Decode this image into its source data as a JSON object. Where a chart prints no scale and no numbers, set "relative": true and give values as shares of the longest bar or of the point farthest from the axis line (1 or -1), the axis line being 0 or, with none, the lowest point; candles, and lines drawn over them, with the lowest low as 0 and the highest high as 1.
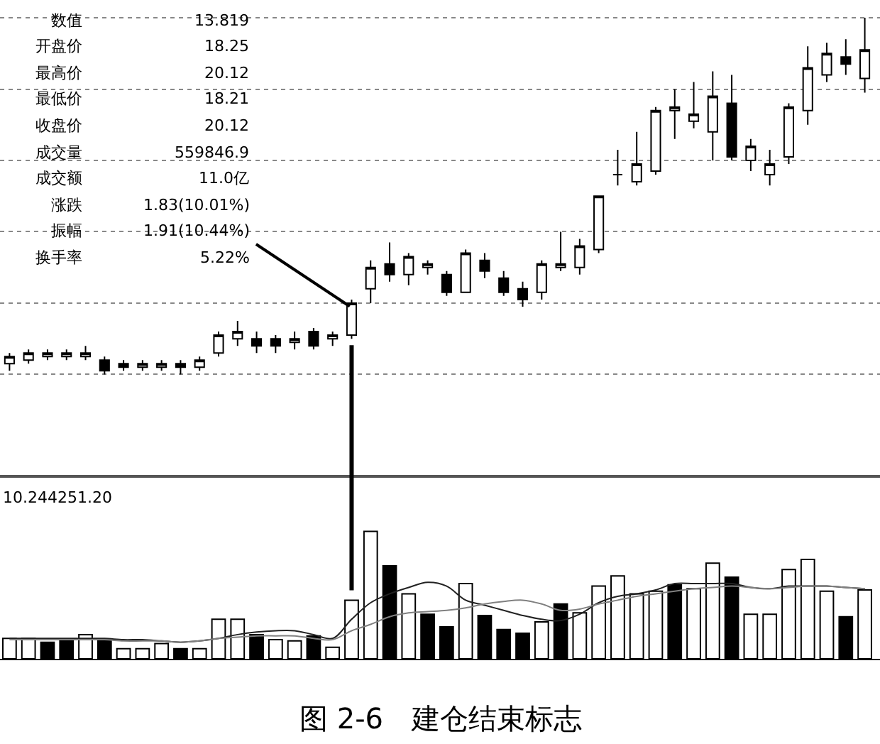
{
  "chart_data": [
    {
      "type": "candlestick",
      "title": "图 2-6　建仓结束标志",
      "relative": true,
      "grid": "y",
      "color": "#000000",
      "categories": [
        null,
        null,
        null,
        null,
        null,
        null,
        null,
        null,
        null,
        null,
        null,
        null,
        null,
        null,
        null,
        null,
        null,
        null,
        null,
        null,
        null,
        null,
        null,
        null,
        null,
        null,
        null,
        null,
        null,
        null,
        null,
        null,
        null,
        null,
        null,
        null,
        null,
        null,
        null,
        null,
        null,
        null,
        null,
        null,
        null,
        null
      ],
      "annotations": [
        "数值",
        "13.819",
        "开盘价",
        "18.25",
        "最高价",
        "20.12",
        "最低价",
        "18.21",
        "收盘价",
        "20.12",
        "成交量",
        "559846.9",
        "成交额",
        "11.0亿",
        "涨跌",
        "1.83(10.01%)",
        "振幅",
        "1.91(10.44%)",
        "换手率",
        "5.22%"
      ],
      "ohlc": [
        [
          0.03,
          0.06,
          0.01,
          0.05
        ],
        [
          0.04,
          0.07,
          0.03,
          0.06
        ],
        [
          0.05,
          0.07,
          0.04,
          0.06
        ],
        [
          0.05,
          0.07,
          0.04,
          0.06
        ],
        [
          0.05,
          0.08,
          0.04,
          0.06
        ],
        [
          0.04,
          0.05,
          0,
          0.01
        ],
        [
          0.03,
          0.04,
          0.01,
          0.02
        ],
        [
          0.02,
          0.04,
          0.01,
          0.03
        ],
        [
          0.02,
          0.04,
          0.01,
          0.03
        ],
        [
          0.03,
          0.04,
          0,
          0.02
        ],
        [
          0.02,
          0.05,
          0.01,
          0.04
        ],
        [
          0.06,
          0.12,
          0.05,
          0.11
        ],
        [
          0.1,
          0.15,
          0.08,
          0.12
        ],
        [
          0.1,
          0.12,
          0.06,
          0.08
        ],
        [
          0.1,
          0.11,
          0.06,
          0.08
        ],
        [
          0.09,
          0.12,
          0.07,
          0.1
        ],
        [
          0.12,
          0.13,
          0.07,
          0.08
        ],
        [
          0.1,
          0.12,
          0.08,
          0.11
        ],
        [
          0.11,
          0.21,
          0.1,
          0.2
        ],
        [
          0.24,
          0.32,
          0.2,
          0.3
        ],
        [
          0.31,
          0.37,
          0.26,
          0.28
        ],
        [
          0.28,
          0.34,
          0.25,
          0.33
        ],
        [
          0.3,
          0.32,
          0.28,
          0.31
        ],
        [
          0.28,
          0.29,
          0.22,
          0.23
        ],
        [
          0.23,
          0.35,
          0.23,
          0.34
        ],
        [
          0.32,
          0.34,
          0.27,
          0.29
        ],
        [
          0.27,
          0.29,
          0.22,
          0.23
        ],
        [
          0.24,
          0.26,
          0.19,
          0.21
        ],
        [
          0.23,
          0.32,
          0.21,
          0.31
        ],
        [
          0.3,
          0.4,
          0.29,
          0.31
        ],
        [
          0.3,
          0.38,
          0.28,
          0.36
        ],
        [
          0.35,
          0.5,
          0.34,
          0.5
        ],
        [
          0.56,
          0.63,
          0.53,
          0.56
        ],
        [
          0.54,
          0.68,
          0.53,
          0.59
        ],
        [
          0.57,
          0.75,
          0.56,
          0.74
        ],
        [
          0.74,
          0.8,
          0.66,
          0.75
        ],
        [
          0.71,
          0.82,
          0.69,
          0.73
        ],
        [
          0.68,
          0.85,
          0.6,
          0.78
        ],
        [
          0.76,
          0.84,
          0.6,
          0.61
        ],
        [
          0.6,
          0.66,
          0.57,
          0.64
        ],
        [
          0.56,
          0.63,
          0.53,
          0.59
        ],
        [
          0.61,
          0.76,
          0.59,
          0.75
        ],
        [
          0.74,
          0.92,
          0.7,
          0.86
        ],
        [
          0.84,
          0.93,
          0.82,
          0.9
        ],
        [
          0.89,
          0.94,
          0.84,
          0.87
        ],
        [
          0.83,
          1,
          0.79,
          0.91
        ]
      ]
    },
    {
      "type": "bar",
      "relative": true,
      "categories": [
        null,
        null,
        null,
        null,
        null,
        null,
        null,
        null,
        null,
        null,
        null,
        null,
        null,
        null,
        null,
        null,
        null,
        null,
        null,
        null,
        null,
        null,
        null,
        null,
        null,
        null,
        null,
        null,
        null,
        null,
        null,
        null,
        null,
        null,
        null,
        null,
        null,
        null,
        null,
        null,
        null,
        null,
        null,
        null,
        null,
        null
      ],
      "annotations": [
        "10.244251.20"
      ],
      "series": [
        {
          "type": "bar",
          "values": [
            0.16,
            0.16,
            0.13,
            0.14,
            0.19,
            0.15,
            0.08,
            0.08,
            0.12,
            0.08,
            0.08,
            0.31,
            0.31,
            0.19,
            0.15,
            0.14,
            0.18,
            0.09,
            0.46,
            1,
            0.73,
            0.51,
            0.35,
            0.25,
            0.59,
            0.34,
            0.23,
            0.2,
            0.29,
            0.43,
            0.36,
            0.57,
            0.65,
            0.51,
            0.53,
            0.58,
            0.55,
            0.75,
            0.64,
            0.35,
            0.35,
            0.7,
            0.78,
            0.53,
            0.33,
            0.54
          ],
          "colors": [
            "#ffffff",
            "#ffffff",
            "#000000",
            "#000000",
            "#ffffff",
            "#000000",
            "#ffffff",
            "#ffffff",
            "#ffffff",
            "#000000",
            "#ffffff",
            "#ffffff",
            "#ffffff",
            "#000000",
            "#ffffff",
            "#ffffff",
            "#000000",
            "#ffffff",
            "#ffffff",
            "#ffffff",
            "#000000",
            "#ffffff",
            "#000000",
            "#000000",
            "#ffffff",
            "#000000",
            "#000000",
            "#000000",
            "#ffffff",
            "#000000",
            "#ffffff",
            "#ffffff",
            "#ffffff",
            "#ffffff",
            "#ffffff",
            "#000000",
            "#ffffff",
            "#ffffff",
            "#000000",
            "#ffffff",
            "#ffffff",
            "#ffffff",
            "#ffffff",
            "#ffffff",
            "#000000",
            "#ffffff"
          ]
        },
        {
          "type": "line",
          "color": "#222222",
          "values": [
            0.16,
            0.16,
            0.16,
            0.16,
            0.16,
            0.16,
            0.15,
            0.15,
            0.14,
            0.13,
            0.14,
            0.16,
            0.19,
            0.21,
            0.22,
            0.22,
            0.19,
            0.16,
            0.31,
            0.44,
            0.51,
            0.56,
            0.6,
            0.57,
            0.46,
            0.42,
            0.38,
            0.34,
            0.31,
            0.3,
            0.35,
            0.44,
            0.49,
            0.51,
            0.54,
            0.59,
            0.59,
            0.59,
            0.59,
            0.56,
            0.55,
            0.57,
            0.57,
            0.57,
            0.56,
            0.55
          ]
        },
        {
          "type": "line",
          "color": "#808080",
          "values": [
            0.15,
            0.15,
            0.15,
            0.15,
            0.15,
            0.15,
            0.14,
            0.14,
            0.14,
            0.13,
            0.14,
            0.16,
            0.17,
            0.18,
            0.18,
            0.18,
            0.16,
            0.15,
            0.22,
            0.27,
            0.33,
            0.36,
            0.37,
            0.38,
            0.4,
            0.43,
            0.45,
            0.46,
            0.43,
            0.38,
            0.39,
            0.43,
            0.46,
            0.49,
            0.51,
            0.53,
            0.55,
            0.56,
            0.57,
            0.56,
            0.55,
            0.56,
            0.57,
            0.57,
            0.56,
            0.55
          ]
        }
      ]
    }
  ]
}
